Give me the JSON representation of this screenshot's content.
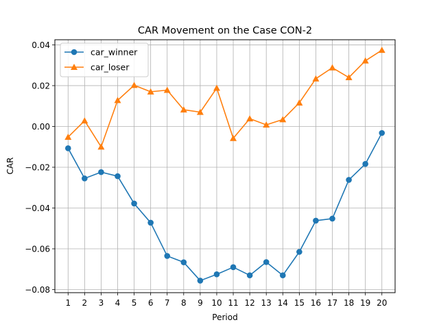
{
  "chart_data": {
    "type": "line",
    "title": "CAR Movement on the Case CON-2",
    "xlabel": "Period",
    "ylabel": "CAR",
    "x": [
      1,
      2,
      3,
      4,
      5,
      6,
      7,
      8,
      9,
      10,
      11,
      12,
      13,
      14,
      15,
      16,
      17,
      18,
      19,
      20
    ],
    "xticks": [
      "1",
      "2",
      "3",
      "4",
      "5",
      "6",
      "7",
      "8",
      "9",
      "10",
      "11",
      "12",
      "13",
      "14",
      "15",
      "16",
      "17",
      "18",
      "19",
      "20"
    ],
    "yticks": [
      "0.04",
      "0.02",
      "0.00",
      "−0.02",
      "−0.04",
      "−0.06",
      "−0.08"
    ],
    "ytick_values": [
      0.04,
      0.02,
      0.0,
      -0.02,
      -0.04,
      -0.06,
      -0.08
    ],
    "xlim": [
      0.2,
      20.8
    ],
    "ylim": [
      -0.0815,
      0.0425
    ],
    "grid": true,
    "legend_position": "top-left",
    "series": [
      {
        "name": "car_winner",
        "color": "#1f77b4",
        "marker": "circle",
        "values": [
          -0.0107,
          -0.0255,
          -0.0224,
          -0.0244,
          -0.0378,
          -0.0472,
          -0.0635,
          -0.0666,
          -0.0756,
          -0.0725,
          -0.069,
          -0.073,
          -0.0665,
          -0.073,
          -0.0615,
          -0.0462,
          -0.0452,
          -0.0262,
          -0.0184,
          -0.0032
        ]
      },
      {
        "name": "car_loser",
        "color": "#ff7f0e",
        "marker": "triangle",
        "values": [
          -0.0052,
          0.0028,
          -0.01,
          0.0128,
          0.0202,
          0.017,
          0.0178,
          0.0082,
          0.007,
          0.0188,
          -0.0058,
          0.0038,
          0.0008,
          0.0034,
          0.0116,
          0.0234,
          0.0288,
          0.024,
          0.0322,
          0.0374
        ]
      }
    ]
  }
}
